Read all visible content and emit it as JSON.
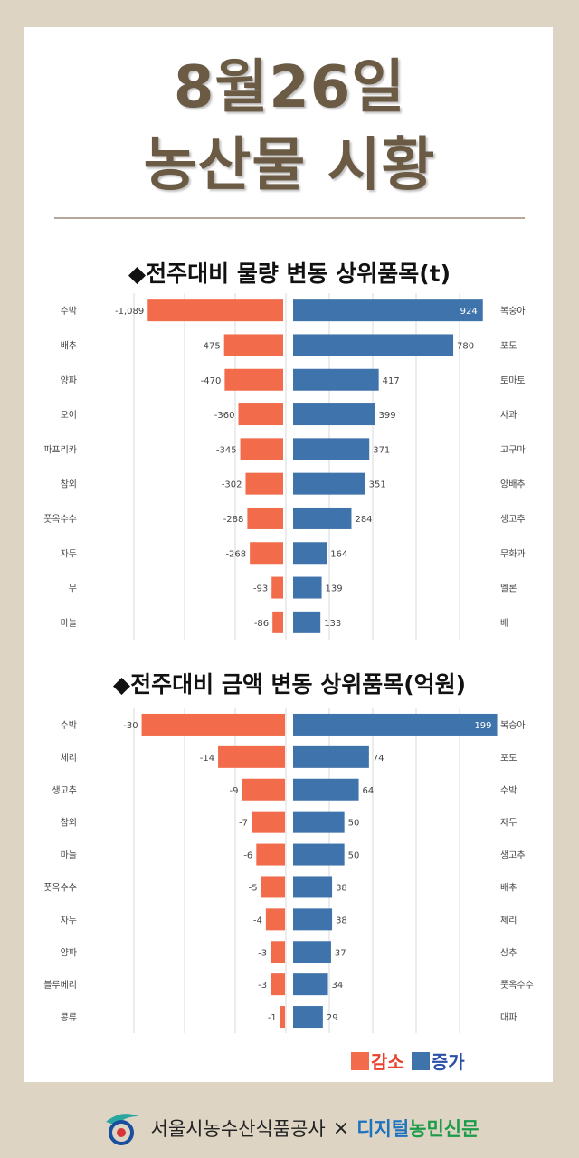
{
  "header": {
    "line1": "8월26일",
    "line2": "농산물 시황"
  },
  "colors": {
    "decrease": "#f26b4b",
    "increase": "#3f73ab",
    "title": "#6b5a44"
  },
  "chart_data": [
    {
      "type": "bar",
      "title": "◆전주대비 물량 변동 상위품목(t)",
      "orientation": "diverging-horizontal",
      "decrease": {
        "name": "감소",
        "categories": [
          "수박",
          "배추",
          "양파",
          "오이",
          "파프리카",
          "참외",
          "풋옥수수",
          "자두",
          "무",
          "마늘"
        ],
        "values": [
          -1089,
          -475,
          -470,
          -360,
          -345,
          -302,
          -288,
          -268,
          -93,
          -86
        ],
        "labels": [
          "-1,089",
          "-475",
          "-470",
          "-360",
          "-345",
          "-302",
          "-288",
          "-268",
          "-93",
          "-86"
        ],
        "xlim": [
          -1200,
          0
        ]
      },
      "increase": {
        "name": "증가",
        "categories": [
          "복숭아",
          "포도",
          "토마토",
          "사과",
          "고구마",
          "양배추",
          "생고추",
          "무화과",
          "멜론",
          "배"
        ],
        "values": [
          924,
          780,
          417,
          399,
          371,
          351,
          284,
          164,
          139,
          133
        ],
        "labels": [
          "924",
          "780",
          "417",
          "399",
          "371",
          "351",
          "284",
          "164",
          "139",
          "133"
        ],
        "xlim": [
          0,
          1000
        ]
      }
    },
    {
      "type": "bar",
      "title": "◆전주대비 금액 변동 상위품목(억원)",
      "orientation": "diverging-horizontal",
      "decrease": {
        "name": "감소",
        "categories": [
          "수박",
          "체리",
          "생고추",
          "참외",
          "마늘",
          "풋옥수수",
          "자두",
          "양파",
          "블루베리",
          "콩류"
        ],
        "values": [
          -30,
          -14,
          -9,
          -7,
          -6,
          -5,
          -4,
          -3,
          -3,
          -1
        ],
        "labels": [
          "-30",
          "-14",
          "-9",
          "-7",
          "-6",
          "-5",
          "-4",
          "-3",
          "-3",
          "-1"
        ],
        "xlim": [
          -32,
          0
        ]
      },
      "increase": {
        "name": "증가",
        "categories": [
          "복숭아",
          "포도",
          "수박",
          "자두",
          "생고추",
          "배추",
          "체리",
          "상추",
          "풋옥수수",
          "대파"
        ],
        "values": [
          199,
          74,
          64,
          50,
          50,
          38,
          38,
          37,
          34,
          29
        ],
        "labels": [
          "199",
          "74",
          "64",
          "50",
          "50",
          "38",
          "38",
          "37",
          "34",
          "29"
        ],
        "xlim": [
          0,
          210
        ]
      }
    }
  ],
  "legend": {
    "decrease": "감소",
    "increase": "증가"
  },
  "footer": {
    "org": "서울시농수산식품공사",
    "cross": "×",
    "brand_a": "디지털",
    "brand_b": "농민신문"
  }
}
